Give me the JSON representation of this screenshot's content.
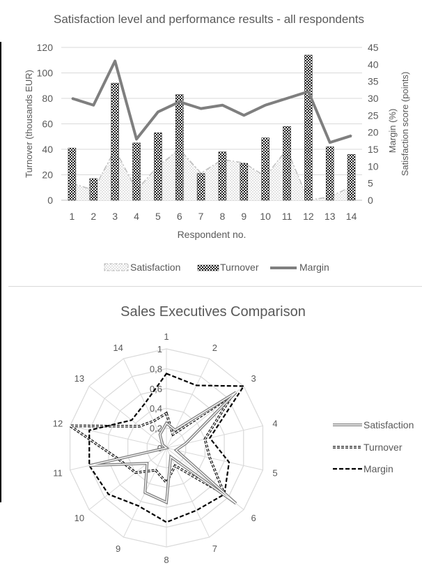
{
  "chart_data": [
    {
      "type": "combo-bar-area-line",
      "title": "Satisfaction level and performance results - all respondents",
      "xlabel": "Respondent no.",
      "ylabel_left": "Turnover (thousands EUR)",
      "ylabel_right": "Margin (%)\nSatisfaction score (points)",
      "categories": [
        "1",
        "2",
        "3",
        "4",
        "5",
        "6",
        "7",
        "8",
        "9",
        "10",
        "11",
        "12",
        "13",
        "14"
      ],
      "y_left_range": [
        0,
        120
      ],
      "y_left_ticks": [
        "0",
        "20",
        "40",
        "60",
        "80",
        "100",
        "120"
      ],
      "y_right_range": [
        0,
        45
      ],
      "y_right_ticks": [
        "0",
        "5",
        "10",
        "15",
        "20",
        "25",
        "30",
        "35",
        "40",
        "45"
      ],
      "grid": true,
      "legend_position": "bottom",
      "series": [
        {
          "name": "Satisfaction",
          "kind": "area",
          "axis": "right",
          "values": [
            5,
            3,
            15,
            3,
            10,
            15,
            8,
            12,
            11,
            7,
            15,
            0,
            1,
            4
          ]
        },
        {
          "name": "Turnover",
          "kind": "bar",
          "axis": "left",
          "values": [
            41,
            17,
            92,
            45,
            53,
            83,
            21,
            38,
            29,
            49,
            58,
            114,
            42,
            36
          ]
        },
        {
          "name": "Margin",
          "kind": "line",
          "axis": "right",
          "values": [
            30,
            28,
            41,
            18,
            26,
            29,
            27,
            28,
            25,
            28,
            30,
            32,
            17,
            19
          ]
        }
      ]
    },
    {
      "type": "radar",
      "title": "Sales Executives Comparison",
      "categories": [
        "1",
        "2",
        "3",
        "4",
        "5",
        "6",
        "7",
        "8",
        "9",
        "10",
        "11",
        "12",
        "13",
        "14"
      ],
      "r_range": [
        0,
        1
      ],
      "r_ticks": [
        "0",
        "0,2",
        "0,4",
        "0,6",
        "0,8",
        "1"
      ],
      "legend_position": "right",
      "series": [
        {
          "name": "Satisfaction",
          "style": "double-solid",
          "values": [
            0.25,
            0.2,
            0.9,
            0.2,
            0.1,
            0.9,
            0.1,
            0.55,
            0.5,
            0.25,
            0.8,
            0.0,
            0.05,
            0.15
          ]
        },
        {
          "name": "Turnover",
          "style": "double-dashed",
          "values": [
            0.35,
            0.15,
            0.85,
            0.4,
            0.45,
            0.75,
            0.2,
            0.35,
            0.25,
            0.4,
            0.5,
            1.0,
            0.35,
            0.3
          ]
        },
        {
          "name": "Margin",
          "style": "dashed",
          "values": [
            0.75,
            0.7,
            1.0,
            0.45,
            0.65,
            0.75,
            0.7,
            0.75,
            0.65,
            0.75,
            0.8,
            0.8,
            0.45,
            0.5
          ]
        }
      ]
    }
  ]
}
